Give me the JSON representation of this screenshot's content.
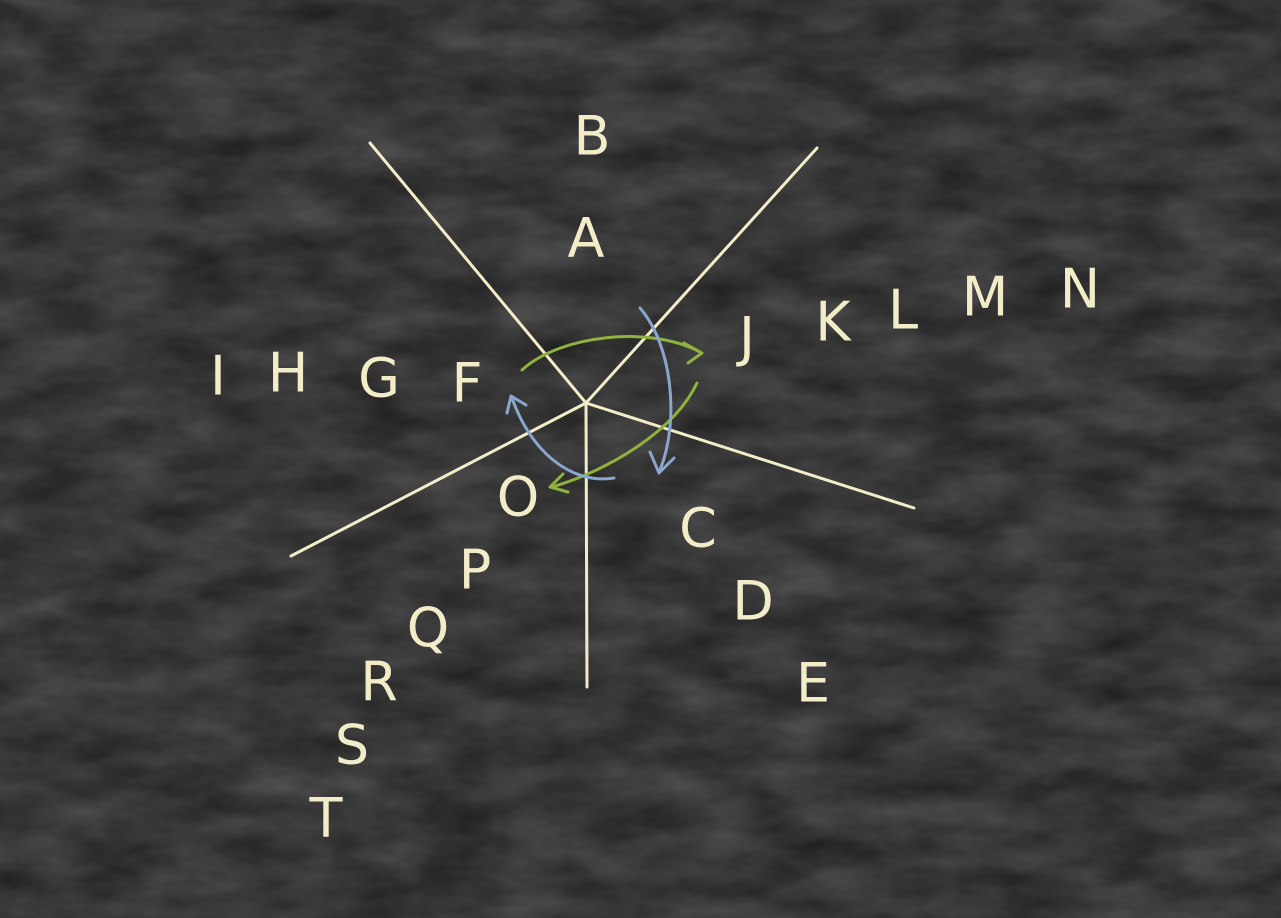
{
  "colors": {
    "background": "#1b1b1b",
    "chalk": "#f3ecc9",
    "green_arrow": "#8fb13e",
    "blue_arrow": "#8aa6cf"
  },
  "diagram": {
    "arms": [
      {
        "name": "A",
        "letters": [
          "A",
          "B"
        ]
      },
      {
        "name": "C",
        "letters": [
          "C",
          "D",
          "E"
        ]
      },
      {
        "name": "F",
        "letters": [
          "F",
          "G",
          "H",
          "I"
        ]
      },
      {
        "name": "J",
        "letters": [
          "J",
          "K",
          "L",
          "M",
          "N"
        ]
      },
      {
        "name": "O",
        "letters": [
          "O",
          "P",
          "Q",
          "R",
          "S",
          "T"
        ]
      }
    ],
    "arrows": [
      {
        "name": "green-arrow-upper",
        "color": "green"
      },
      {
        "name": "green-arrow-lower",
        "color": "green"
      },
      {
        "name": "blue-arrow-right",
        "color": "blue"
      },
      {
        "name": "blue-arrow-left",
        "color": "blue"
      }
    ]
  }
}
